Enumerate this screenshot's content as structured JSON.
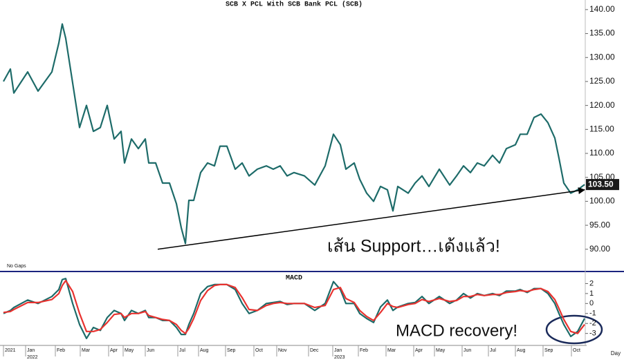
{
  "chart_data": [
    {
      "type": "line",
      "title": "SCB X PCL With SCB Bank PCL (SCB)",
      "note": "No Gaps",
      "x": [
        0,
        1,
        1.5,
        3.5,
        5,
        7,
        8,
        8.5,
        9,
        10,
        11,
        12,
        13,
        14,
        15,
        16,
        17,
        17.5,
        18.5,
        19.5,
        20.5,
        21,
        22,
        23,
        24,
        25,
        25.7,
        26.3,
        26.8,
        27.5,
        28.5,
        29.5,
        30.5,
        31.3,
        32.3,
        33.5,
        34.5,
        35.5,
        36.7,
        38,
        39,
        40,
        41,
        42,
        43.5,
        45,
        46.5,
        47.7,
        48.7,
        49.5,
        50.7,
        51.5,
        52.5,
        53.5,
        54.5,
        55.5,
        56.3,
        57,
        58.5,
        59.5,
        60.5,
        61.5,
        63,
        64.5,
        65.5,
        66.5,
        67.5,
        68.5,
        69.5,
        70.7,
        71.7,
        72.7,
        74,
        74.7,
        75.7,
        76.7,
        77.7,
        78.7,
        79.7,
        80.3,
        81,
        82,
        83,
        84
      ],
      "series": [
        {
          "color": "#1d6b69",
          "values": [
            125,
            127.6,
            122.6,
            127,
            123,
            127,
            133,
            137,
            134,
            124.7,
            115.4,
            120,
            114.6,
            115.4,
            120,
            113,
            114.6,
            108,
            113,
            111,
            113,
            108,
            108,
            103.8,
            103.8,
            99.5,
            94.5,
            91.2,
            100.2,
            100.2,
            106,
            108,
            107.4,
            111.5,
            111.5,
            106.7,
            108,
            105.3,
            106.7,
            107.4,
            106.7,
            107.4,
            105.3,
            106,
            105.3,
            103.4,
            107.4,
            114,
            111.8,
            106.7,
            108,
            104.6,
            101.7,
            100,
            103.1,
            102.4,
            98,
            103.1,
            101.7,
            103.8,
            105.3,
            103.1,
            106.7,
            103.4,
            105.3,
            107.4,
            106,
            108,
            107.4,
            109.6,
            108,
            111,
            111.8,
            114,
            114,
            117.5,
            118.2,
            116.4,
            113.2,
            109,
            103.8,
            101.7,
            102.4,
            103.5
          ]
        }
      ],
      "last_value_label": "103.50",
      "xlim": [
        0,
        84
      ],
      "ylim": [
        85.5,
        142
      ],
      "yticks": [
        {
          "value": 90,
          "label": "90.00"
        },
        {
          "value": 95,
          "label": "95.00"
        },
        {
          "value": 100,
          "label": "100.00"
        },
        {
          "value": 105,
          "label": "105.00"
        },
        {
          "value": 110,
          "label": "110.00"
        },
        {
          "value": 115,
          "label": "115.00"
        },
        {
          "value": 120,
          "label": "120.00"
        },
        {
          "value": 125,
          "label": "125.00"
        },
        {
          "value": 130,
          "label": "130.00"
        },
        {
          "value": 135,
          "label": "135.00"
        },
        {
          "value": 140,
          "label": "140.00"
        }
      ],
      "support_line": {
        "x": [
          22.3,
          84
        ],
        "y": [
          90,
          102.4
        ],
        "color": "#000000"
      },
      "annotation": "เส้น Support…เด้งแล้ว!"
    },
    {
      "type": "line",
      "title": "MACD",
      "x": [
        0,
        1,
        1.5,
        3.5,
        5,
        7,
        8,
        8.5,
        9,
        10,
        11,
        12,
        13,
        14,
        15,
        16,
        17,
        17.5,
        18.5,
        19.5,
        20.5,
        21,
        22,
        23,
        24,
        25,
        25.7,
        26.3,
        26.8,
        27.5,
        28.5,
        29.5,
        30.5,
        31.3,
        32.3,
        33.5,
        34.5,
        35.5,
        36.7,
        38,
        39,
        40,
        41,
        42,
        43.5,
        45,
        46.5,
        47.7,
        48.7,
        49.5,
        50.7,
        51.5,
        52.5,
        53.5,
        54.5,
        55.5,
        56.3,
        57,
        58.5,
        59.5,
        60.5,
        61.5,
        63,
        64.5,
        65.5,
        66.5,
        67.5,
        68.5,
        69.5,
        70.7,
        71.7,
        72.7,
        74,
        74.7,
        75.7,
        76.7,
        77.7,
        78.7,
        79.7,
        80.3,
        81,
        82,
        83,
        84
      ],
      "series": [
        {
          "color": "#1d6b69",
          "values": [
            -1.0,
            -0.7,
            -0.4,
            0.35,
            0,
            0.7,
            1.4,
            2.4,
            2.5,
            0,
            -2.1,
            -3.5,
            -2.4,
            -2.7,
            -1.4,
            -0.7,
            -1.0,
            -1.7,
            -0.7,
            -1.0,
            -0.7,
            -1.4,
            -1.4,
            -1.7,
            -1.7,
            -2.4,
            -3.1,
            -3.1,
            -2.1,
            -1.0,
            1.0,
            1.7,
            1.9,
            1.9,
            1.9,
            1.4,
            0,
            -1.0,
            -0.7,
            0,
            0.1,
            0.2,
            -0.1,
            0,
            0,
            -0.7,
            0,
            2.2,
            1.4,
            0,
            0,
            -1.0,
            -1.5,
            -1.9,
            -0.35,
            0.35,
            -0.7,
            -0.35,
            0,
            0.1,
            0.7,
            0,
            0.7,
            0,
            0.35,
            1.0,
            0.55,
            1.0,
            0.8,
            1.0,
            0.8,
            1.25,
            1.25,
            1.4,
            1.1,
            1.5,
            1.5,
            1.0,
            0,
            -1.0,
            -2.1,
            -3.3,
            -2.8,
            -1.5
          ]
        },
        {
          "color": "#e8322f",
          "values": [
            -0.9,
            -0.8,
            -0.6,
            0.1,
            0.1,
            0.4,
            1.0,
            1.8,
            2.3,
            1.2,
            -1.0,
            -2.8,
            -2.8,
            -2.6,
            -1.9,
            -1.1,
            -1.0,
            -1.4,
            -1.0,
            -1.0,
            -0.8,
            -1.2,
            -1.4,
            -1.6,
            -1.7,
            -2.1,
            -2.7,
            -3.0,
            -2.5,
            -1.5,
            0.3,
            1.3,
            1.8,
            1.9,
            1.9,
            1.6,
            0.6,
            -0.6,
            -0.7,
            -0.2,
            0.0,
            0.1,
            0.0,
            0.0,
            0.0,
            -0.4,
            -0.2,
            1.4,
            1.6,
            0.5,
            0.1,
            -0.7,
            -1.3,
            -1.7,
            -0.9,
            0.0,
            -0.3,
            -0.4,
            -0.1,
            0.0,
            0.4,
            0.2,
            0.5,
            0.2,
            0.3,
            0.7,
            0.7,
            0.9,
            0.8,
            0.9,
            0.9,
            1.1,
            1.2,
            1.3,
            1.2,
            1.4,
            1.5,
            1.2,
            0.4,
            -0.5,
            -1.6,
            -2.8,
            -3.0,
            -2.1
          ]
        }
      ],
      "xlim": [
        0,
        84
      ],
      "ylim": [
        -4.2,
        3.0
      ],
      "yticks": [
        2,
        1,
        0,
        -1,
        -2,
        -3
      ],
      "xticks": [
        {
          "value": 0,
          "label": "2021"
        },
        {
          "value": 3.2,
          "label": "Jan"
        },
        {
          "value": 7.5,
          "label": "Feb"
        },
        {
          "value": 11.1,
          "label": "Mar"
        },
        {
          "value": 15.2,
          "label": "Apr"
        },
        {
          "value": 17.3,
          "label": "May"
        },
        {
          "value": 20.5,
          "label": "Jun"
        },
        {
          "value": 25.2,
          "label": "Jul"
        },
        {
          "value": 28.2,
          "label": "Aug"
        },
        {
          "value": 32.1,
          "label": "Sep"
        },
        {
          "value": 36.2,
          "label": "Oct"
        },
        {
          "value": 39.5,
          "label": "Nov"
        },
        {
          "value": 44.1,
          "label": "Dec"
        },
        {
          "value": 47.6,
          "label": "Jan"
        },
        {
          "value": 51.3,
          "label": "Feb"
        },
        {
          "value": 55.3,
          "label": "Mar"
        },
        {
          "value": 59.3,
          "label": "Apr"
        },
        {
          "value": 62.3,
          "label": "May"
        },
        {
          "value": 66.3,
          "label": "Jun"
        },
        {
          "value": 70.1,
          "label": "Jul"
        },
        {
          "value": 74,
          "label": "Aug"
        },
        {
          "value": 78,
          "label": "Sep"
        },
        {
          "value": 82.1,
          "label": "Oct"
        }
      ],
      "year_ticks": [
        {
          "value": 3.2,
          "label": "2022"
        },
        {
          "value": 47.6,
          "label": "2023"
        }
      ],
      "xlabel": "Day",
      "annotation": "MACD recovery!"
    }
  ]
}
